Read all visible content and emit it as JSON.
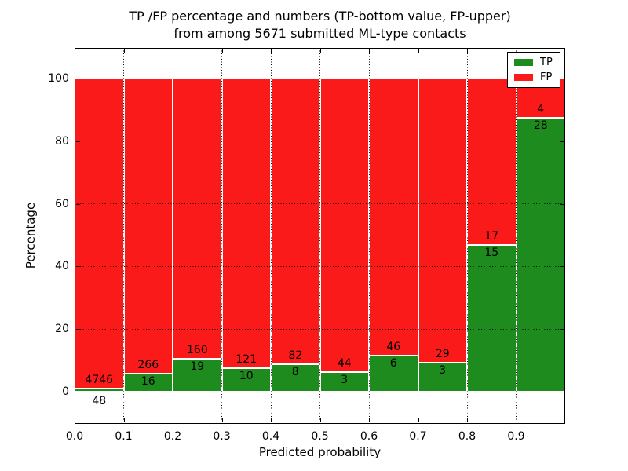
{
  "figure": {
    "title_line1": "TP /FP percentage and numbers (TP-bottom value, FP-upper)",
    "title_line2": "from among 5671 submitted ML-type contacts"
  },
  "chart_data": {
    "type": "bar",
    "stacked": true,
    "normalized": "each 0.1-wide probability bin scaled to 100%",
    "title": "TP /FP percentage and numbers (TP-bottom value, FP-upper) from among 5671 submitted ML-type contacts",
    "xlabel": "Predicted probability",
    "ylabel": "Percentage",
    "total_contacts": 5671,
    "xlim": [
      0.0,
      1.0
    ],
    "ylim": [
      -10.5,
      110
    ],
    "bin_width": 0.1,
    "categories": [
      "0.0-0.1",
      "0.1-0.2",
      "0.2-0.3",
      "0.3-0.4",
      "0.4-0.5",
      "0.5-0.6",
      "0.6-0.7",
      "0.7-0.8",
      "0.8-0.9",
      "0.9-1.0"
    ],
    "xtick_labels": [
      "0.0",
      "0.1",
      "0.2",
      "0.3",
      "0.4",
      "0.5",
      "0.6",
      "0.7",
      "0.8",
      "0.9"
    ],
    "yticks": [
      0,
      20,
      40,
      60,
      80,
      100
    ],
    "grid": "dotted black, both axes, drawn over bars",
    "series": [
      {
        "name": "TP",
        "color": "#1e8b1e",
        "counts": [
          48,
          16,
          19,
          10,
          8,
          3,
          6,
          3,
          15,
          28
        ]
      },
      {
        "name": "FP",
        "color": "#fa1a1a",
        "counts": [
          4746,
          266,
          160,
          121,
          82,
          44,
          46,
          29,
          17,
          4
        ]
      }
    ],
    "tp_percent": [
      1.0,
      5.7,
      10.6,
      7.6,
      8.9,
      6.4,
      11.5,
      9.4,
      46.9,
      87.5
    ],
    "legend": {
      "position": "upper right",
      "entries": [
        "TP",
        "FP"
      ]
    }
  }
}
